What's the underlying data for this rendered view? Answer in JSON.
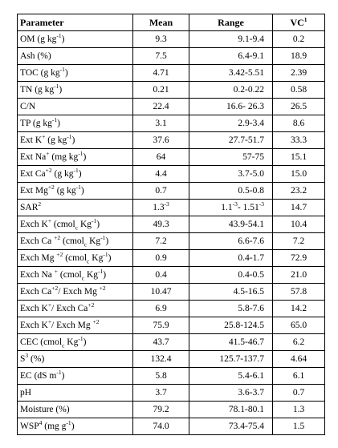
{
  "table": {
    "header": [
      "Parameter",
      "Mean",
      "Range",
      [
        {
          "t": "VC"
        },
        {
          "sup": "1"
        }
      ]
    ],
    "rows": [
      [
        [
          {
            "t": "OM (g kg"
          },
          {
            "sup": "-1"
          },
          {
            "t": ")"
          }
        ],
        "9.3",
        "9.1-9.4",
        "0.2"
      ],
      [
        "Ash (%)",
        "7.5",
        "6.4-9.1",
        "18.9"
      ],
      [
        [
          {
            "t": "TOC (g kg"
          },
          {
            "sup": "-1"
          },
          {
            "t": ")"
          }
        ],
        "4.71",
        "3.42-5.51",
        "2.39"
      ],
      [
        [
          {
            "t": "TN (g kg"
          },
          {
            "sup": "-1"
          },
          {
            "t": ")"
          }
        ],
        "0.21",
        "0.2-0.22",
        "0.58"
      ],
      [
        "C/N",
        "22.4",
        "16.6- 26.3",
        "26.5"
      ],
      [
        [
          {
            "t": "TP (g kg"
          },
          {
            "sup": "-1"
          },
          {
            "t": ")"
          }
        ],
        "3.1",
        "2.9-3.4",
        "8.6"
      ],
      [
        [
          {
            "t": "Ext K"
          },
          {
            "sup": "+"
          },
          {
            "t": " (g kg"
          },
          {
            "sup": "-1"
          },
          {
            "t": ")"
          }
        ],
        "37.6",
        "27.7-51.7",
        "33.3"
      ],
      [
        [
          {
            "t": "Ext Na"
          },
          {
            "sup": "+"
          },
          {
            "t": " (mg kg"
          },
          {
            "sup": "-1"
          },
          {
            "t": ")"
          }
        ],
        "64",
        "57-75",
        "15.1"
      ],
      [
        [
          {
            "t": "Ext Ca"
          },
          {
            "sup": "+2"
          },
          {
            "t": " (g kg"
          },
          {
            "sup": "-1"
          },
          {
            "t": ")"
          }
        ],
        "4.4",
        "3.7-5.0",
        "15.0"
      ],
      [
        [
          {
            "t": "Ext Mg"
          },
          {
            "sup": "+2"
          },
          {
            "t": " (g kg"
          },
          {
            "sup": "-1"
          },
          {
            "t": ")"
          }
        ],
        "0.7",
        "0.5-0.8",
        "23.2"
      ],
      [
        [
          {
            "t": "SAR"
          },
          {
            "sup": "2"
          }
        ],
        [
          {
            "t": "1.3"
          },
          {
            "sup": "-3"
          }
        ],
        [
          {
            "t": "1.1"
          },
          {
            "sup": "-3"
          },
          {
            "t": "- 1.51"
          },
          {
            "sup": "-3"
          }
        ],
        "14.7"
      ],
      [
        [
          {
            "t": "Exch K"
          },
          {
            "sup": "+"
          },
          {
            "t": " (cmol"
          },
          {
            "sub": "c"
          },
          {
            "t": " Kg"
          },
          {
            "sup": "-1"
          },
          {
            "t": ")"
          }
        ],
        "49.3",
        "43.9-54.1",
        "10.4"
      ],
      [
        [
          {
            "t": "Exch Ca "
          },
          {
            "sup": "+2"
          },
          {
            "t": " (cmol"
          },
          {
            "sub": "c"
          },
          {
            "t": " Kg"
          },
          {
            "sup": "-1"
          },
          {
            "t": ")"
          }
        ],
        "7.2",
        "6.6-7.6",
        "7.2"
      ],
      [
        [
          {
            "t": "Exch Mg "
          },
          {
            "sup": "+2"
          },
          {
            "t": " (cmol"
          },
          {
            "sub": "c"
          },
          {
            "t": " Kg"
          },
          {
            "sup": "-1"
          },
          {
            "t": ")"
          }
        ],
        "0.9",
        "0.4-1.7",
        "72.9"
      ],
      [
        [
          {
            "t": "Exch Na "
          },
          {
            "sup": "+"
          },
          {
            "t": " (cmol"
          },
          {
            "sub": "c"
          },
          {
            "t": " Kg"
          },
          {
            "sup": "-1"
          },
          {
            "t": ")"
          }
        ],
        "0.4",
        "0.4-0.5",
        "21.0"
      ],
      [
        [
          {
            "t": "Exch Ca"
          },
          {
            "sup": "+2"
          },
          {
            "t": "/ Exch Mg "
          },
          {
            "sup": "+2"
          }
        ],
        "10.47",
        "4.5-16.5",
        "57.8"
      ],
      [
        [
          {
            "t": "Exch K"
          },
          {
            "sup": "+"
          },
          {
            "t": "/ Exch Ca"
          },
          {
            "sup": "+2"
          }
        ],
        "6.9",
        "5.8-7.6",
        "14.2"
      ],
      [
        [
          {
            "t": "Exch K"
          },
          {
            "sup": "+"
          },
          {
            "t": "/ Exch Mg "
          },
          {
            "sup": "+2"
          }
        ],
        "75.9",
        "25.8-124.5",
        "65.0"
      ],
      [
        [
          {
            "t": "CEC (cmol"
          },
          {
            "sub": "c"
          },
          {
            "t": " Kg"
          },
          {
            "sup": "-1"
          },
          {
            "t": ")"
          }
        ],
        "43.7",
        "41.5-46.7",
        "6.2"
      ],
      [
        [
          {
            "t": "S"
          },
          {
            "sup": "3"
          },
          {
            "t": " (%)"
          }
        ],
        "132.4",
        "125.7-137.7",
        "4.64"
      ],
      [
        [
          {
            "t": "EC (dS m"
          },
          {
            "sup": "-1"
          },
          {
            "t": ")"
          }
        ],
        "5.8",
        "5.4-6.1",
        "6.1"
      ],
      [
        "pH",
        "3.7",
        "3.6-3.7",
        "0.7"
      ],
      [
        "Moisture (%)",
        "79.2",
        "78.1-80.1",
        "1.3"
      ],
      [
        [
          {
            "t": "WSP"
          },
          {
            "sup": "4"
          },
          {
            "t": " (mg g"
          },
          {
            "sup": "-1"
          },
          {
            "t": ")"
          }
        ],
        "74.0",
        "73.4-75.4",
        "1.5"
      ]
    ]
  }
}
